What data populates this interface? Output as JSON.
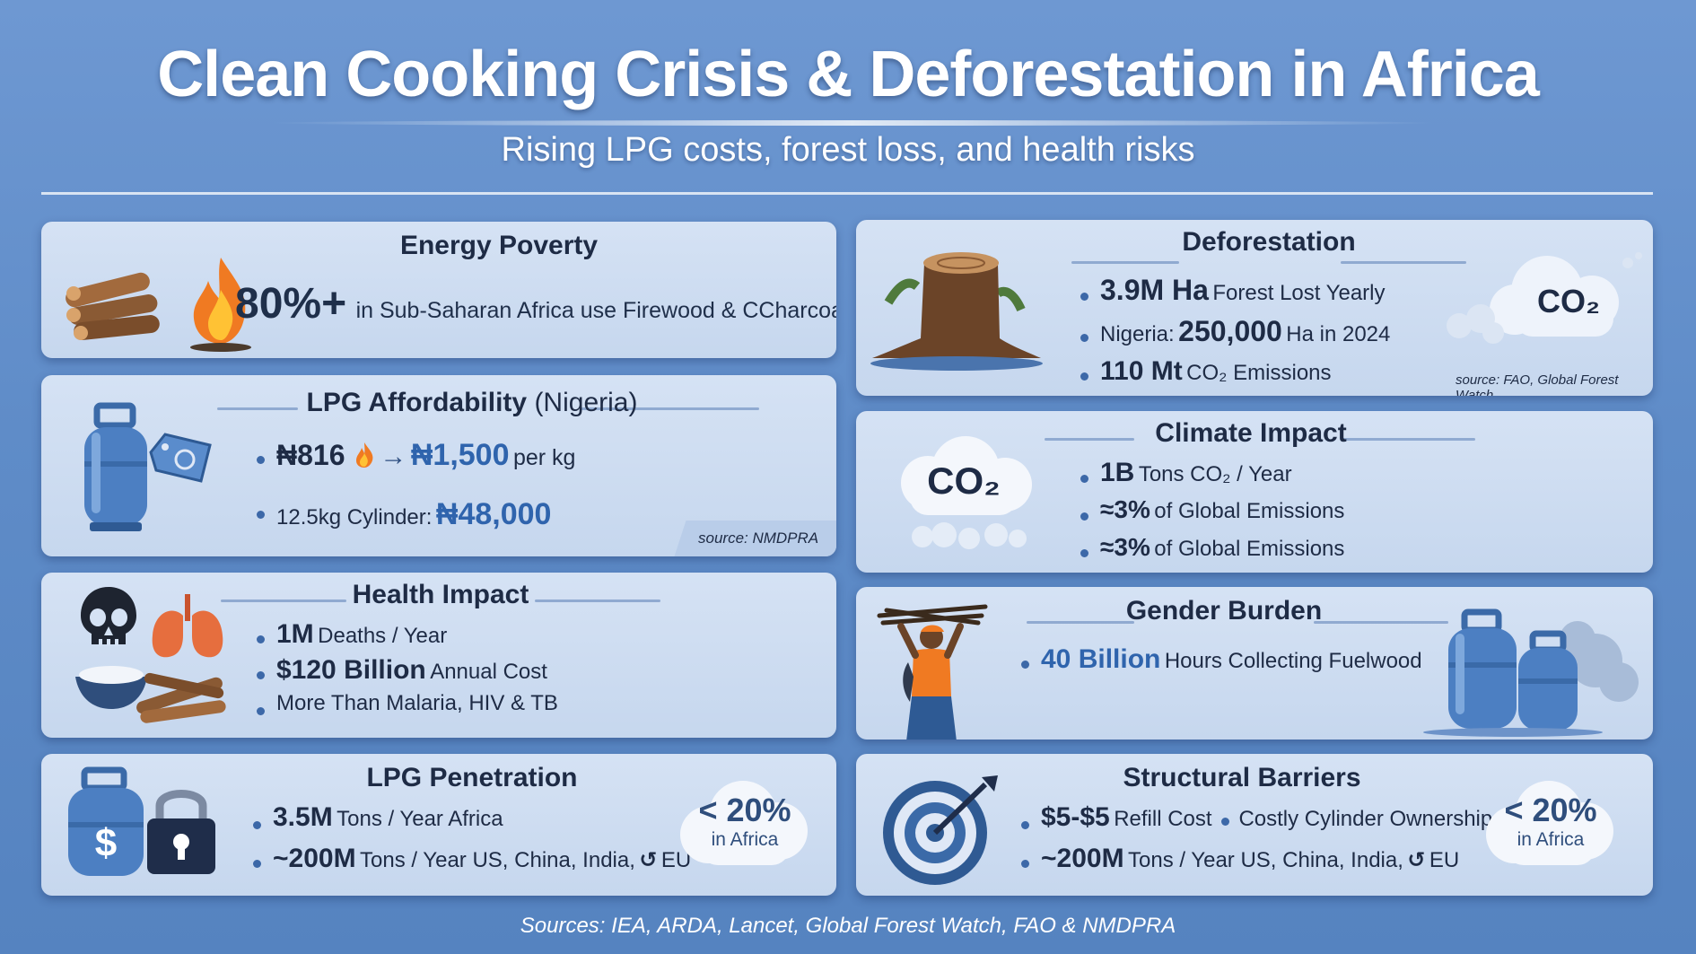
{
  "header": {
    "title": "Clean Cooking Crisis & Deforestation in Africa",
    "subtitle": "Rising LPG costs, forest loss, and health risks"
  },
  "energy_poverty": {
    "title": "Energy Poverty",
    "stat": "80%+",
    "text": "in Sub-Saharan Africa use Firewood & CCharcoal"
  },
  "lpg_affordability": {
    "title": "LPG Affordability",
    "title_suffix": "(Nigeria)",
    "price_from": "₦816",
    "arrow": "→",
    "price_to": "₦1,500",
    "price_unit": "per kg",
    "cylinder_label": "12.5kg Cylinder:",
    "cylinder_price": "₦48,000",
    "source": "source: NMDPRA"
  },
  "health_impact": {
    "title": "Health Impact",
    "b1_big": "1M",
    "b1_text": "Deaths / Year",
    "b2_big": "$120 Billion",
    "b2_text": "Annual Cost",
    "b3_text": "More Than Malaria, HIV & TB"
  },
  "lpg_penetration": {
    "title": "LPG Penetration",
    "b1_big": "3.5M",
    "b1_text": "Tons / Year Africa",
    "b2_big": "~200M",
    "b2_text": "Tons / Year US, China, India,",
    "b2_tail": "EU",
    "badge_top": "< 20%",
    "badge_bottom": "in Africa"
  },
  "deforestation": {
    "title": "Deforestation",
    "b1_big": "3.9M Ha",
    "b1_text": "Forest Lost Yearly",
    "b2_pre": "Nigeria:",
    "b2_big": "250,000",
    "b2_text": "Ha in 2024",
    "b3_big": "110 Mt",
    "b3_text": "CO₂ Emissions",
    "cloud_label": "CO₂",
    "source": "source: FAO, Global Forest Watch"
  },
  "climate_impact": {
    "title": "Climate Impact",
    "cloud_label": "CO₂",
    "b1_big": "1B",
    "b1_text": "Tons CO₂ / Year",
    "b2_big": "≈3%",
    "b2_text": "of Global Emissions",
    "b3_big": "≈3%",
    "b3_text": "of Global Emissions"
  },
  "gender_burden": {
    "title": "Gender Burden",
    "b1_big": "40 Billion",
    "b1_text": "Hours Collecting Fuelwood"
  },
  "structural_barriers": {
    "title": "Structural Barriers",
    "b1_big": "$5-$5",
    "b1_text": "Refill Cost",
    "b1_extra": "Costly Cylinder Ownership",
    "b2_big": "~200M",
    "b2_text": "Tons / Year US, China, India,",
    "b2_tail": "EU",
    "badge_top": "< 20%",
    "badge_bottom": "in Africa"
  },
  "footer": {
    "sources": "Sources: IEA, ARDA, Lancet, Global Forest Watch, FAO & NMDPRA"
  },
  "colors": {
    "background": "#5f8cc8",
    "panel": "#cfdcf1",
    "accent_blue": "#2f64ad",
    "text_dark": "#1e2b45"
  },
  "icons": [
    "firewood-icon",
    "fire-icon",
    "gas-cylinder-icon",
    "price-tag-icon",
    "skull-icon",
    "lungs-icon",
    "firewood-bowl-icon",
    "dollar-cylinder-icon",
    "padlock-icon",
    "tree-stump-icon",
    "co2-cloud-icon",
    "woman-carrying-wood-icon",
    "target-icon"
  ]
}
